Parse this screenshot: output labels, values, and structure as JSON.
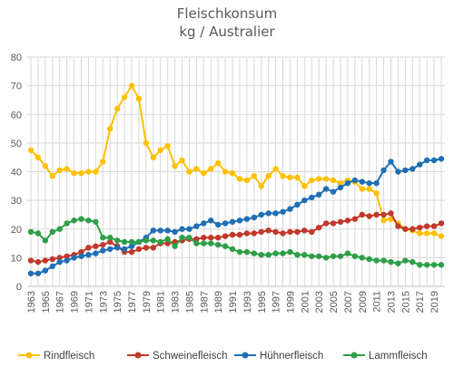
{
  "chart_data": {
    "type": "line",
    "title_line1": "Fleischkonsum",
    "title_line2": "kg / Australier",
    "ylim": [
      0,
      80
    ],
    "yticks": [
      0,
      10,
      20,
      30,
      40,
      50,
      60,
      70,
      80
    ],
    "x": [
      1963,
      1964,
      1965,
      1966,
      1967,
      1968,
      1969,
      1970,
      1971,
      1972,
      1973,
      1974,
      1975,
      1976,
      1977,
      1978,
      1979,
      1980,
      1981,
      1982,
      1983,
      1984,
      1985,
      1986,
      1987,
      1988,
      1989,
      1990,
      1991,
      1992,
      1993,
      1994,
      1995,
      1996,
      1997,
      1998,
      1999,
      2000,
      2001,
      2002,
      2003,
      2004,
      2005,
      2006,
      2007,
      2008,
      2009,
      2010,
      2011,
      2012,
      2013,
      2014,
      2015,
      2016,
      2017,
      2018,
      2019,
      2020
    ],
    "xtick_labels": [
      "1963",
      "1965",
      "1967",
      "1969",
      "1971",
      "1973",
      "1975",
      "1977",
      "1979",
      "1981",
      "1983",
      "1985",
      "1987",
      "1989",
      "1991",
      "1993",
      "1995",
      "1997",
      "1999",
      "2001",
      "2003",
      "2005",
      "2007",
      "2009",
      "2011",
      "2013",
      "2015",
      "2017",
      "2019"
    ],
    "grid": true,
    "legend_position": "bottom",
    "series": [
      {
        "name": "Rindfleisch",
        "color": "#FFC000",
        "values": [
          47.5,
          45,
          42,
          38.5,
          40.5,
          41,
          39.5,
          39.5,
          40,
          40,
          43.5,
          55,
          62,
          66,
          70,
          65.5,
          50,
          45,
          47.5,
          49,
          42,
          44,
          40,
          41,
          39.5,
          41,
          43,
          40,
          39.5,
          37.5,
          37,
          38.5,
          35,
          38.5,
          41,
          38.5,
          38,
          38,
          35,
          37,
          37.5,
          37.5,
          37,
          36,
          37,
          36.5,
          34,
          34,
          32.5,
          23,
          23.5,
          22,
          20,
          19.5,
          18.5,
          18.5,
          18.5,
          17.5
        ]
      },
      {
        "name": "Schweinefleisch",
        "color": "#C0392B",
        "values": [
          9,
          8.5,
          9,
          9.5,
          10,
          10.5,
          11,
          12,
          13.5,
          14,
          14.5,
          15.5,
          14,
          12,
          12,
          13,
          13.5,
          13.5,
          15,
          15,
          15.5,
          16,
          16.5,
          16.5,
          17,
          17,
          17,
          17.5,
          18,
          18,
          18.5,
          18.5,
          19,
          19.5,
          19,
          18.5,
          19,
          19,
          19.5,
          19,
          20.5,
          22,
          22,
          22.5,
          23,
          23.5,
          25,
          24.5,
          25,
          25,
          25.5,
          21,
          20,
          20,
          20.5,
          21,
          21,
          22
        ]
      },
      {
        "name": "Hühnerfleisch",
        "color": "#1F6FB5",
        "values": [
          4.5,
          4.5,
          5.5,
          7,
          8.5,
          9,
          10,
          10.5,
          11,
          11.5,
          12.5,
          13,
          13.5,
          13,
          14,
          15.5,
          17,
          19.5,
          19.5,
          19.5,
          19,
          20,
          20,
          21,
          22,
          23,
          21.5,
          22,
          22.5,
          23,
          23.5,
          24,
          25,
          25.5,
          25.5,
          26,
          27,
          28.5,
          30,
          31,
          32,
          34,
          33,
          34.5,
          36,
          37,
          36.5,
          36,
          36,
          40.5,
          43.5,
          40,
          40.5,
          41,
          42.5,
          44,
          44,
          44.5
        ]
      },
      {
        "name": "Lammfleisch",
        "color": "#2E9E47",
        "values": [
          19,
          18.5,
          16,
          19,
          20,
          22,
          23,
          23.5,
          23,
          22.5,
          17,
          17,
          16,
          15.5,
          15.5,
          15.5,
          16,
          16,
          15.5,
          16.5,
          14,
          17,
          17,
          15,
          15,
          15,
          14.5,
          14,
          13,
          12,
          12,
          11.5,
          11,
          11,
          11.5,
          11.5,
          12,
          11,
          11,
          10.5,
          10.5,
          10,
          10.5,
          10.5,
          11.5,
          10.5,
          10,
          9.5,
          9,
          9,
          8.5,
          8,
          9,
          8.5,
          7.5,
          7.5,
          7.5,
          7.5
        ]
      }
    ]
  }
}
